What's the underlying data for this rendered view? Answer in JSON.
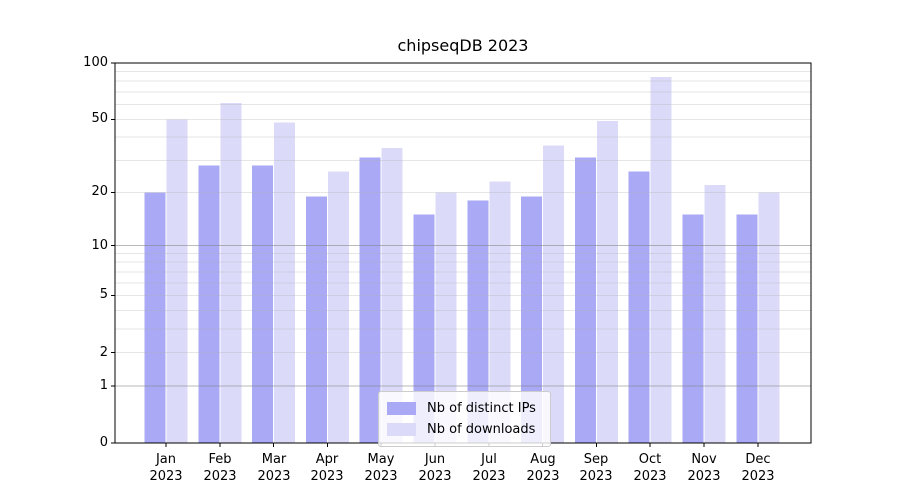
{
  "title": "chipseqDB 2023",
  "chart_data": {
    "type": "bar",
    "title": "chipseqDB 2023",
    "scale": "log1p",
    "categories": [
      "Jan",
      "Feb",
      "Mar",
      "Apr",
      "May",
      "Jun",
      "Jul",
      "Aug",
      "Sep",
      "Oct",
      "Nov",
      "Dec"
    ],
    "year": "2023",
    "series": [
      {
        "name": "Nb of distinct IPs",
        "color": "#a9a9f6",
        "values": [
          20,
          28,
          28,
          19,
          31,
          15,
          18,
          19,
          31,
          26,
          15,
          15
        ]
      },
      {
        "name": "Nb of downloads",
        "color": "#dbdbf9",
        "values": [
          50,
          61,
          48,
          26,
          35,
          20,
          23,
          36,
          49,
          84,
          22,
          20
        ]
      }
    ],
    "xlabel": "",
    "ylabel": "",
    "ylim": [
      0,
      100
    ],
    "y_ticks": [
      0,
      1,
      2,
      5,
      10,
      20,
      50,
      100
    ],
    "y_major_grid": [
      1,
      10
    ],
    "y_minor_grid": [
      2,
      3,
      4,
      5,
      6,
      7,
      8,
      9,
      20,
      30,
      40,
      50,
      60,
      70,
      80,
      90
    ],
    "grid": true,
    "legend_position": "lower center"
  },
  "legend": {
    "items": [
      {
        "label": "Nb of distinct IPs",
        "color": "#a9a9f6"
      },
      {
        "label": "Nb of downloads",
        "color": "#dbdbf9"
      }
    ]
  },
  "colors": {
    "background": "#ffffff",
    "spine": "#000000",
    "major_grid": "rgba(130,130,130,0.55)",
    "minor_grid": "rgba(176,176,176,0.32)",
    "text": "#000000"
  }
}
